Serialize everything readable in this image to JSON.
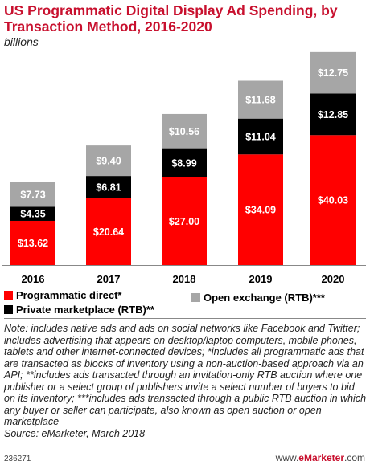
{
  "title": "US Programmatic Digital Display Ad Spending, by Transaction Method, 2016-2020",
  "subtitle": "billions",
  "legend": {
    "programmatic_direct": "Programmatic direct*",
    "private_marketplace": "Private marketplace (RTB)**",
    "open_exchange": "Open exchange (RTB)***"
  },
  "colors": {
    "programmatic_direct": "#ff0000",
    "private_marketplace": "#000000",
    "open_exchange": "#a6a6a6"
  },
  "chart_data": {
    "type": "bar",
    "stacked": true,
    "categories": [
      "2016",
      "2017",
      "2018",
      "2019",
      "2020"
    ],
    "series": [
      {
        "name": "Programmatic direct*",
        "values": [
          13.62,
          20.64,
          27.0,
          34.09,
          40.03
        ],
        "labels": [
          "$13.62",
          "$20.64",
          "$27.00",
          "$34.09",
          "$40.03"
        ]
      },
      {
        "name": "Private marketplace (RTB)**",
        "values": [
          4.35,
          6.81,
          8.99,
          11.04,
          12.85
        ],
        "labels": [
          "$4.35",
          "$6.81",
          "$8.99",
          "$11.04",
          "$12.85"
        ]
      },
      {
        "name": "Open exchange (RTB)***",
        "values": [
          7.73,
          9.4,
          10.56,
          11.68,
          12.75
        ],
        "labels": [
          "$7.73",
          "$9.40",
          "$10.56",
          "$11.68",
          "$12.75"
        ]
      }
    ],
    "ylabel": "billions",
    "grid": false,
    "legend_placement": "bottom"
  },
  "note": "Note: includes native ads and ads on social networks like Facebook and Twitter; includes advertising that appears on desktop/laptop computers, mobile phones, tablets and other internet-connected devices; *includes all programmatic ads that are transacted as blocks of inventory using a non-auction-based approach via an API; **includes ads transacted through an invitation-only RTB auction where one publisher or a select group of publishers invite a select number of buyers to bid on its inventory; ***includes ads transacted through a public RTB auction in which any buyer or seller can participate, also known as open auction or open marketplace",
  "source": "Source: eMarketer, March 2018",
  "footer": {
    "chart_id": "236271",
    "brand_prefix": "www.",
    "brand_name": "eMarketer",
    "brand_suffix": ".com"
  }
}
